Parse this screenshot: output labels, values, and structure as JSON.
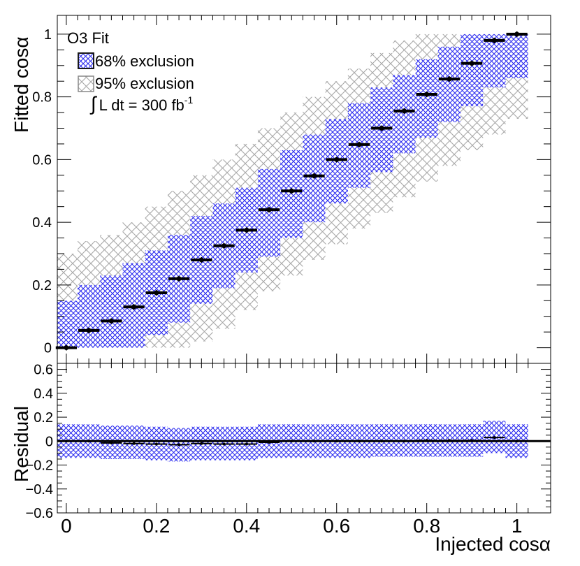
{
  "chart_data": [
    {
      "type": "scatter",
      "panel": "main",
      "xlim": [
        -0.02,
        1.075
      ],
      "ylim": [
        -0.05,
        1.06
      ],
      "ylabel": "Fitted cosα",
      "ytick_labels": [
        "0",
        "0.2",
        "0.4",
        "0.6",
        "0.8",
        "1"
      ],
      "legend_position": "top-left",
      "legend": {
        "title": "O3 Fit",
        "band68_label": "68% exclusion",
        "band95_label": "95% exclusion",
        "lumi_text": "∫ L dt = 300 fb-1",
        "lumi_integral": "∫",
        "lumi_main": "L dt = 300 fb",
        "lumi_sup": "-1"
      },
      "x": [
        0,
        0.05,
        0.1,
        0.15,
        0.2,
        0.25,
        0.3,
        0.35,
        0.4,
        0.45,
        0.5,
        0.55,
        0.6,
        0.65,
        0.7,
        0.75,
        0.8,
        0.85,
        0.9,
        0.95,
        1.0
      ],
      "y": [
        0.0,
        0.055,
        0.085,
        0.13,
        0.175,
        0.22,
        0.28,
        0.325,
        0.375,
        0.44,
        0.5,
        0.548,
        0.6,
        0.648,
        0.7,
        0.755,
        0.808,
        0.857,
        0.907,
        0.98,
        1.0
      ],
      "band68": [
        [
          0.0,
          0.15
        ],
        [
          0.0,
          0.2
        ],
        [
          0.0,
          0.23
        ],
        [
          0.0,
          0.27
        ],
        [
          0.04,
          0.31
        ],
        [
          0.08,
          0.36
        ],
        [
          0.14,
          0.42
        ],
        [
          0.19,
          0.46
        ],
        [
          0.24,
          0.51
        ],
        [
          0.29,
          0.57
        ],
        [
          0.35,
          0.63
        ],
        [
          0.4,
          0.68
        ],
        [
          0.46,
          0.73
        ],
        [
          0.51,
          0.78
        ],
        [
          0.56,
          0.83
        ],
        [
          0.62,
          0.87
        ],
        [
          0.67,
          0.92
        ],
        [
          0.72,
          0.96
        ],
        [
          0.77,
          1.0
        ],
        [
          0.83,
          1.0
        ],
        [
          0.86,
          1.0
        ]
      ],
      "band95": [
        [
          0.0,
          0.3
        ],
        [
          0.0,
          0.34
        ],
        [
          0.0,
          0.36
        ],
        [
          0.0,
          0.4
        ],
        [
          0.0,
          0.45
        ],
        [
          0.0,
          0.5
        ],
        [
          0.02,
          0.55
        ],
        [
          0.06,
          0.6
        ],
        [
          0.12,
          0.65
        ],
        [
          0.18,
          0.7
        ],
        [
          0.23,
          0.75
        ],
        [
          0.28,
          0.8
        ],
        [
          0.33,
          0.85
        ],
        [
          0.38,
          0.89
        ],
        [
          0.43,
          0.94
        ],
        [
          0.48,
          0.98
        ],
        [
          0.53,
          1.0
        ],
        [
          0.58,
          1.0
        ],
        [
          0.63,
          1.0
        ],
        [
          0.68,
          1.0
        ],
        [
          0.73,
          1.0
        ]
      ]
    },
    {
      "type": "scatter",
      "panel": "residual",
      "xlim": [
        -0.02,
        1.075
      ],
      "ylim": [
        -0.6,
        0.65
      ],
      "xlabel": "Injected cosα",
      "ylabel": "Residual",
      "xticks": [
        0,
        0.2,
        0.4,
        0.6,
        0.8,
        1
      ],
      "xtick_labels": [
        "0",
        "0.2",
        "0.4",
        "0.6",
        "0.8",
        "1"
      ],
      "yticks": [
        -0.6,
        -0.4,
        -0.2,
        0,
        0.2,
        0.4,
        0.6
      ],
      "ytick_labels": [
        "−0.6",
        "−0.4",
        "−0.2",
        "0",
        "0.2",
        "0.4",
        "0.6"
      ],
      "reference_line": 0,
      "x": [
        0,
        0.05,
        0.1,
        0.15,
        0.2,
        0.25,
        0.3,
        0.35,
        0.4,
        0.45,
        0.5,
        0.55,
        0.6,
        0.65,
        0.7,
        0.75,
        0.8,
        0.85,
        0.9,
        0.95,
        1.0
      ],
      "y": [
        0.0,
        0.0,
        -0.015,
        -0.02,
        -0.025,
        -0.03,
        -0.02,
        -0.025,
        -0.025,
        -0.01,
        0.0,
        0.0,
        0.0,
        0.0,
        0.0,
        0.0,
        0.005,
        0.005,
        0.005,
        0.03,
        0.0
      ],
      "band": [
        [
          -0.14,
          0.14
        ],
        [
          -0.14,
          0.14
        ],
        [
          -0.15,
          0.13
        ],
        [
          -0.15,
          0.13
        ],
        [
          -0.16,
          0.12
        ],
        [
          -0.17,
          0.11
        ],
        [
          -0.16,
          0.12
        ],
        [
          -0.16,
          0.12
        ],
        [
          -0.16,
          0.12
        ],
        [
          -0.14,
          0.14
        ],
        [
          -0.14,
          0.14
        ],
        [
          -0.14,
          0.14
        ],
        [
          -0.14,
          0.14
        ],
        [
          -0.14,
          0.14
        ],
        [
          -0.13,
          0.14
        ],
        [
          -0.13,
          0.14
        ],
        [
          -0.13,
          0.14
        ],
        [
          -0.13,
          0.14
        ],
        [
          -0.13,
          0.14
        ],
        [
          -0.1,
          0.17
        ],
        [
          -0.14,
          0.14
        ]
      ]
    }
  ]
}
